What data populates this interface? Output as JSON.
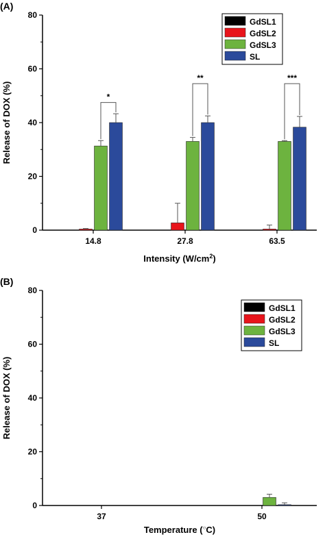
{
  "chart_data": [
    {
      "panel_label": "(A)",
      "type": "bar",
      "categories": [
        "14.8",
        "27.8",
        "63.5"
      ],
      "xlabel": "Intensity (W/cm",
      "xlabel_sup": "2",
      "xlabel_end": ")",
      "ylabel": "Release of DOX (%)",
      "ylim": [
        0,
        80
      ],
      "yticks": [
        "0",
        "20",
        "40",
        "60",
        "80"
      ],
      "legend_position": "top-right",
      "series": [
        {
          "name": "GdSL1",
          "color": "#000000",
          "values": [
            0,
            0,
            0
          ],
          "errors": [
            0,
            0,
            0
          ]
        },
        {
          "name": "GdSL2",
          "color": "#e8141b",
          "values": [
            0.4,
            2.7,
            0.4
          ],
          "errors": [
            0.2,
            7.3,
            1.5
          ]
        },
        {
          "name": "GdSL3",
          "color": "#6db33f",
          "values": [
            31.3,
            33.0,
            33.0
          ],
          "errors": [
            2.0,
            1.5,
            0.3
          ]
        },
        {
          "name": "SL",
          "color": "#2b4a9b",
          "values": [
            40.0,
            40.0,
            38.3
          ],
          "errors": [
            3.3,
            2.5,
            4.0
          ]
        }
      ],
      "significance": [
        {
          "category": 0,
          "label": "*",
          "level": 47.5
        },
        {
          "category": 1,
          "label": "**",
          "level": 54.5
        },
        {
          "category": 2,
          "label": "***",
          "level": 54.5
        }
      ]
    },
    {
      "panel_label": "(B)",
      "type": "bar",
      "categories": [
        "37",
        "50"
      ],
      "xlabel": "Temperature (",
      "xlabel_deg": "○",
      "xlabel_end": "C)",
      "ylabel": "Release of DOX (%)",
      "ylim": [
        0,
        80
      ],
      "yticks": [
        "0",
        "20",
        "40",
        "60",
        "80"
      ],
      "legend_position": "top-right",
      "series": [
        {
          "name": "GdSL1",
          "color": "#000000",
          "values": [
            0,
            0
          ],
          "errors": [
            0,
            0
          ]
        },
        {
          "name": "GdSL2",
          "color": "#e8141b",
          "values": [
            0,
            0
          ],
          "errors": [
            0,
            0
          ]
        },
        {
          "name": "GdSL3",
          "color": "#6db33f",
          "values": [
            0,
            3.0
          ],
          "errors": [
            0,
            1.2
          ]
        },
        {
          "name": "SL",
          "color": "#2b4a9b",
          "values": [
            0,
            0.3
          ],
          "errors": [
            0,
            0.7
          ]
        }
      ]
    }
  ]
}
